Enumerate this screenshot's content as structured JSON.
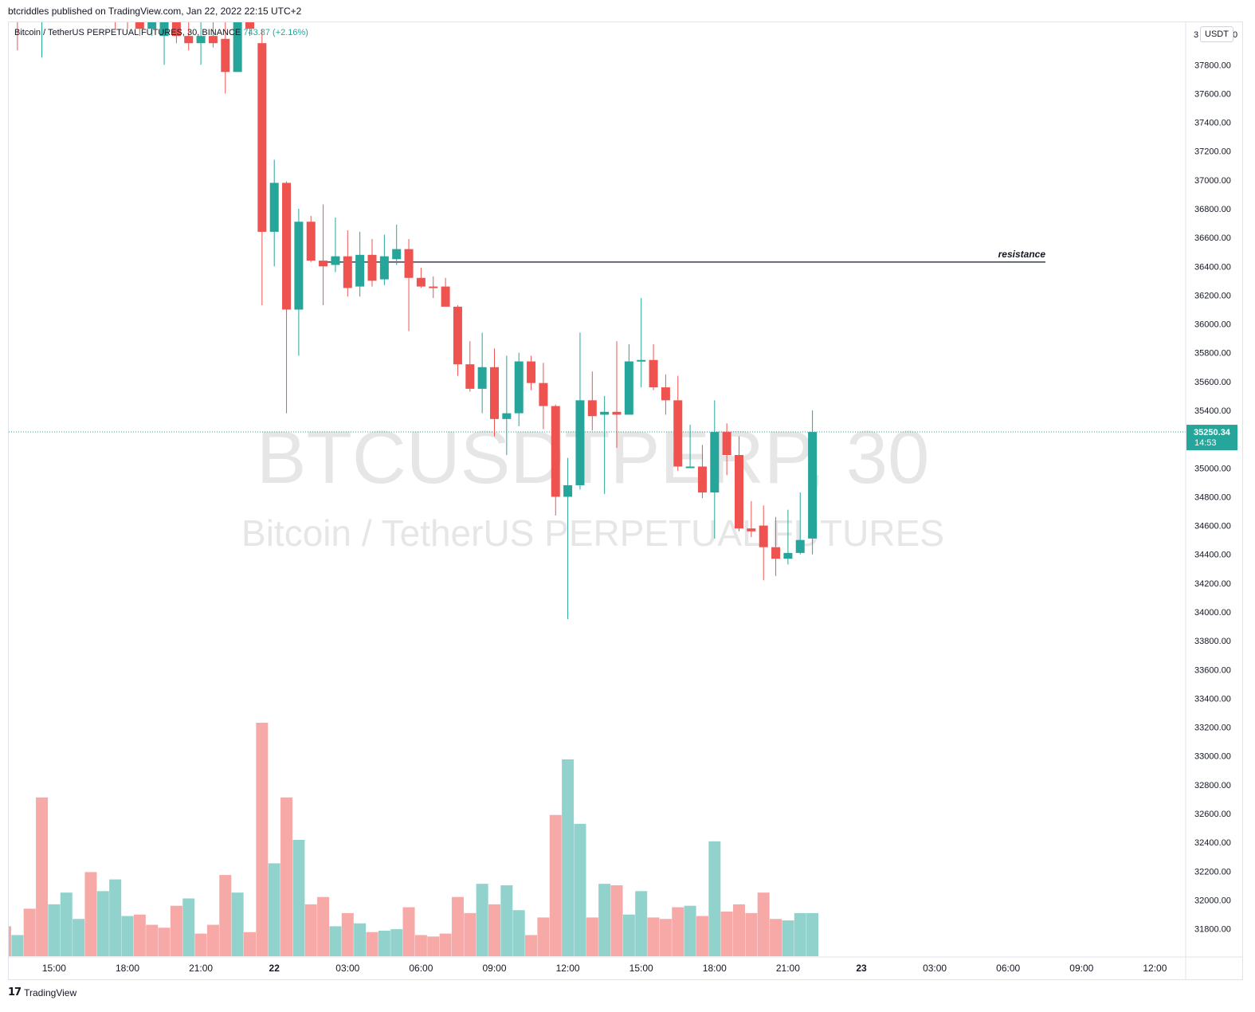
{
  "header": {
    "publisher": "btcriddles published on TradingView.com, Jan 22, 2022 22:15 UTC+2",
    "symbol_info": "Bitcoin / TetherUS PERPETUAL FUTURES, 30, BINANCE",
    "change_text": "743.87 (+2.16%)"
  },
  "watermark": {
    "line1": "BTCUSDTPERP, 30",
    "line2": "Bitcoin / TetherUS PERPETUAL FUTURES"
  },
  "axis": {
    "unit": "USDT"
  },
  "last_price": {
    "value": "35250.34",
    "countdown": "14:53"
  },
  "brand": {
    "logo": "17",
    "name": "TradingView"
  },
  "colors": {
    "up": "#26a69a",
    "down": "#ef5350",
    "up_volume": "#92d2cc",
    "down_volume": "#f7a9a7",
    "last_price": "#26a69a"
  },
  "chart_data": {
    "type": "candlestick",
    "price_ticks": [
      "37800.00",
      "37600.00",
      "37400.00",
      "37200.00",
      "37000.00",
      "36800.00",
      "36600.00",
      "36400.00",
      "36200.00",
      "36000.00",
      "35800.00",
      "35600.00",
      "35400.00",
      "35200.00",
      "35000.00",
      "34800.00",
      "34600.00",
      "34400.00",
      "34200.00",
      "34000.00",
      "33800.00",
      "33600.00",
      "33400.00",
      "33200.00",
      "33000.00",
      "32800.00",
      "32600.00",
      "32400.00",
      "32200.00",
      "32000.00",
      "31800.00"
    ],
    "top_tick_partial": "3",
    "top_tick_partial_end": "0",
    "time_ticks": [
      "15:00",
      "18:00",
      "21:00",
      "22",
      "03:00",
      "06:00",
      "09:00",
      "12:00",
      "15:00",
      "18:00",
      "21:00",
      "23",
      "03:00",
      "06:00",
      "09:00",
      "12:00"
    ],
    "bold_time_ticks": [
      "22",
      "23"
    ],
    "annotation": {
      "label": "resistance",
      "price": 36430
    },
    "last_price": 35250.34,
    "candles": [
      {
        "o": 38200,
        "h": 38300,
        "l": 37650,
        "c": 38150
      },
      {
        "o": 38150,
        "h": 38300,
        "l": 37900,
        "c": 38100
      },
      {
        "o": 38250,
        "h": 38350,
        "l": 38100,
        "c": 38200
      },
      {
        "o": 38200,
        "h": 38350,
        "l": 37850,
        "c": 38250
      },
      {
        "o": 38250,
        "h": 38350,
        "l": 38150,
        "c": 38300
      },
      {
        "o": 38300,
        "h": 38400,
        "l": 38100,
        "c": 38200
      },
      {
        "o": 38200,
        "h": 38350,
        "l": 38100,
        "c": 38280
      },
      {
        "o": 38280,
        "h": 38400,
        "l": 38150,
        "c": 38230
      },
      {
        "o": 38230,
        "h": 38350,
        "l": 38100,
        "c": 38200
      },
      {
        "o": 38200,
        "h": 38300,
        "l": 38050,
        "c": 38150
      },
      {
        "o": 38150,
        "h": 38280,
        "l": 38050,
        "c": 38100
      },
      {
        "o": 38100,
        "h": 38250,
        "l": 38000,
        "c": 38050
      },
      {
        "o": 38050,
        "h": 38200,
        "l": 38000,
        "c": 38100
      },
      {
        "o": 38000,
        "h": 38150,
        "l": 37800,
        "c": 38100
      },
      {
        "o": 38100,
        "h": 38200,
        "l": 37950,
        "c": 38000
      },
      {
        "o": 38000,
        "h": 38150,
        "l": 37900,
        "c": 37950
      },
      {
        "o": 37950,
        "h": 38150,
        "l": 37800,
        "c": 38000
      },
      {
        "o": 38000,
        "h": 38200,
        "l": 37920,
        "c": 37950
      },
      {
        "o": 37980,
        "h": 38200,
        "l": 37600,
        "c": 37750
      },
      {
        "o": 37750,
        "h": 38200,
        "l": 37750,
        "c": 38150
      },
      {
        "o": 38150,
        "h": 38300,
        "l": 38000,
        "c": 38050
      },
      {
        "o": 37950,
        "h": 38050,
        "l": 36130,
        "c": 36640
      },
      {
        "o": 36640,
        "h": 37140,
        "l": 36400,
        "c": 36980
      },
      {
        "o": 36980,
        "h": 36990,
        "l": 35380,
        "c": 36100
      },
      {
        "o": 36100,
        "h": 36800,
        "l": 35780,
        "c": 36710
      },
      {
        "o": 36710,
        "h": 36750,
        "l": 36430,
        "c": 36440
      },
      {
        "o": 36440,
        "h": 36830,
        "l": 36130,
        "c": 36400
      },
      {
        "o": 36410,
        "h": 36740,
        "l": 36360,
        "c": 36470
      },
      {
        "o": 36470,
        "h": 36650,
        "l": 36190,
        "c": 36250
      },
      {
        "o": 36260,
        "h": 36640,
        "l": 36190,
        "c": 36480
      },
      {
        "o": 36480,
        "h": 36590,
        "l": 36260,
        "c": 36300
      },
      {
        "o": 36310,
        "h": 36620,
        "l": 36270,
        "c": 36470
      },
      {
        "o": 36450,
        "h": 36690,
        "l": 36410,
        "c": 36520
      },
      {
        "o": 36520,
        "h": 36590,
        "l": 35950,
        "c": 36320
      },
      {
        "o": 36320,
        "h": 36390,
        "l": 36250,
        "c": 36260
      },
      {
        "o": 36260,
        "h": 36330,
        "l": 36180,
        "c": 36250
      },
      {
        "o": 36260,
        "h": 36320,
        "l": 36140,
        "c": 36120
      },
      {
        "o": 36120,
        "h": 36130,
        "l": 35640,
        "c": 35720
      },
      {
        "o": 35720,
        "h": 35880,
        "l": 35530,
        "c": 35550
      },
      {
        "o": 35550,
        "h": 35940,
        "l": 35380,
        "c": 35700
      },
      {
        "o": 35700,
        "h": 35830,
        "l": 35220,
        "c": 35340
      },
      {
        "o": 35340,
        "h": 35780,
        "l": 35090,
        "c": 35380
      },
      {
        "o": 35380,
        "h": 35800,
        "l": 35290,
        "c": 35740
      },
      {
        "o": 35740,
        "h": 35780,
        "l": 35540,
        "c": 35590
      },
      {
        "o": 35590,
        "h": 35730,
        "l": 35270,
        "c": 35430
      },
      {
        "o": 35430,
        "h": 35440,
        "l": 34670,
        "c": 34800
      },
      {
        "o": 34800,
        "h": 35070,
        "l": 33950,
        "c": 34880
      },
      {
        "o": 34880,
        "h": 35940,
        "l": 34850,
        "c": 35470
      },
      {
        "o": 35470,
        "h": 35670,
        "l": 35260,
        "c": 35360
      },
      {
        "o": 35370,
        "h": 35500,
        "l": 34820,
        "c": 35390
      },
      {
        "o": 35390,
        "h": 35880,
        "l": 35140,
        "c": 35370
      },
      {
        "o": 35370,
        "h": 35860,
        "l": 35370,
        "c": 35740
      },
      {
        "o": 35740,
        "h": 36180,
        "l": 35560,
        "c": 35750
      },
      {
        "o": 35750,
        "h": 35860,
        "l": 35540,
        "c": 35560
      },
      {
        "o": 35560,
        "h": 35650,
        "l": 35370,
        "c": 35470
      },
      {
        "o": 35470,
        "h": 35640,
        "l": 34980,
        "c": 35010
      },
      {
        "o": 35010,
        "h": 35300,
        "l": 35000,
        "c": 35010
      },
      {
        "o": 35010,
        "h": 35160,
        "l": 34790,
        "c": 34830
      },
      {
        "o": 34830,
        "h": 35470,
        "l": 34510,
        "c": 35250
      },
      {
        "o": 35250,
        "h": 35310,
        "l": 34950,
        "c": 35090
      },
      {
        "o": 35090,
        "h": 35220,
        "l": 34560,
        "c": 34580
      },
      {
        "o": 34580,
        "h": 34770,
        "l": 34520,
        "c": 34560
      },
      {
        "o": 34600,
        "h": 34740,
        "l": 34220,
        "c": 34450
      },
      {
        "o": 34450,
        "h": 34660,
        "l": 34250,
        "c": 34370
      },
      {
        "o": 34370,
        "h": 34710,
        "l": 34330,
        "c": 34410
      },
      {
        "o": 34410,
        "h": 34830,
        "l": 34400,
        "c": 34500
      },
      {
        "o": 34510,
        "h": 35400,
        "l": 34400,
        "c": 35250
      }
    ],
    "volume_range": [
      31650,
      33250
    ],
    "volumes": [
      31860,
      31800,
      31980,
      32740,
      32010,
      32090,
      31910,
      32230,
      32100,
      32180,
      31930,
      31940,
      31870,
      31850,
      32000,
      32050,
      31810,
      31870,
      32210,
      32090,
      31820,
      33250,
      32290,
      32740,
      32450,
      32010,
      32060,
      31860,
      31950,
      31880,
      31820,
      31830,
      31840,
      31990,
      31800,
      31790,
      31810,
      32060,
      31950,
      32150,
      32010,
      32140,
      31970,
      31800,
      31920,
      32620,
      33000,
      32560,
      31920,
      32150,
      32140,
      31940,
      32100,
      31920,
      31910,
      31990,
      32000,
      31930,
      32440,
      31960,
      32010,
      31950,
      32090,
      31910,
      31900,
      31950,
      31950
    ],
    "volume_up": [
      false,
      true,
      false,
      false,
      true,
      true,
      true,
      false,
      true,
      true,
      true,
      false,
      false,
      false,
      false,
      true,
      false,
      false,
      false,
      true,
      false,
      false,
      true,
      false,
      true,
      false,
      false,
      true,
      false,
      true,
      false,
      true,
      true,
      false,
      false,
      false,
      false,
      false,
      false,
      true,
      false,
      true,
      true,
      false,
      false,
      false,
      true,
      true,
      false,
      true,
      false,
      true,
      true,
      false,
      false,
      false,
      true,
      false,
      true,
      false,
      false,
      false,
      false,
      false,
      true,
      true,
      true
    ]
  }
}
